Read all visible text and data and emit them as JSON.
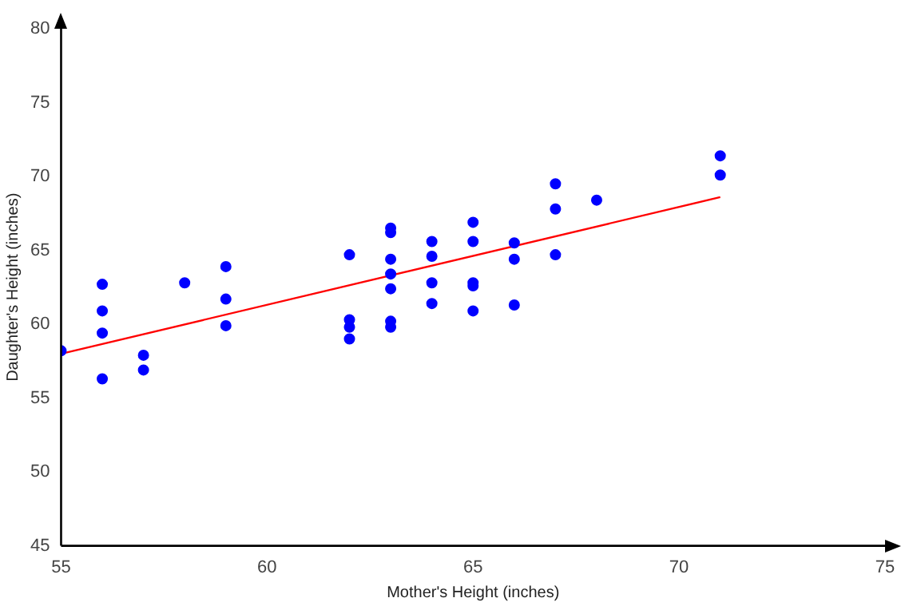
{
  "chart_data": {
    "type": "scatter",
    "xlabel": "Mother's Height (inches)",
    "ylabel": "Daughter's Height (inches)",
    "xlim": [
      55,
      75
    ],
    "xticks": [
      55,
      60,
      65,
      70,
      75
    ],
    "ylim": [
      45,
      80
    ],
    "yticks": [
      45,
      50,
      55,
      60,
      65,
      70,
      75,
      80
    ],
    "grid": false,
    "legend": false,
    "marker": "circle",
    "series": [
      {
        "color": "#0000ff",
        "x": [
          55,
          56,
          56,
          56,
          56,
          57,
          57,
          58,
          59,
          59,
          59,
          62,
          62,
          62,
          62,
          63,
          63,
          63,
          63,
          63,
          63,
          63,
          64,
          64,
          64,
          64,
          65,
          65,
          65,
          65,
          65,
          66,
          66,
          66,
          67,
          67,
          67,
          68,
          71,
          71
        ],
        "values": [
          58.2,
          62.7,
          60.9,
          59.4,
          56.3,
          57.9,
          56.9,
          62.8,
          63.9,
          61.7,
          59.9,
          64.7,
          60.3,
          59.8,
          59.0,
          66.5,
          66.2,
          64.4,
          63.4,
          62.4,
          60.2,
          59.8,
          65.6,
          64.6,
          62.8,
          61.4,
          66.9,
          65.6,
          62.8,
          62.6,
          60.9,
          65.5,
          64.4,
          61.3,
          69.5,
          67.8,
          64.7,
          68.4,
          71.4,
          70.1
        ]
      },
      {
        "type": "line",
        "color": "#ff0000",
        "marker": "none",
        "x": [
          55,
          71
        ],
        "values": [
          58.0,
          68.6
        ]
      }
    ]
  }
}
